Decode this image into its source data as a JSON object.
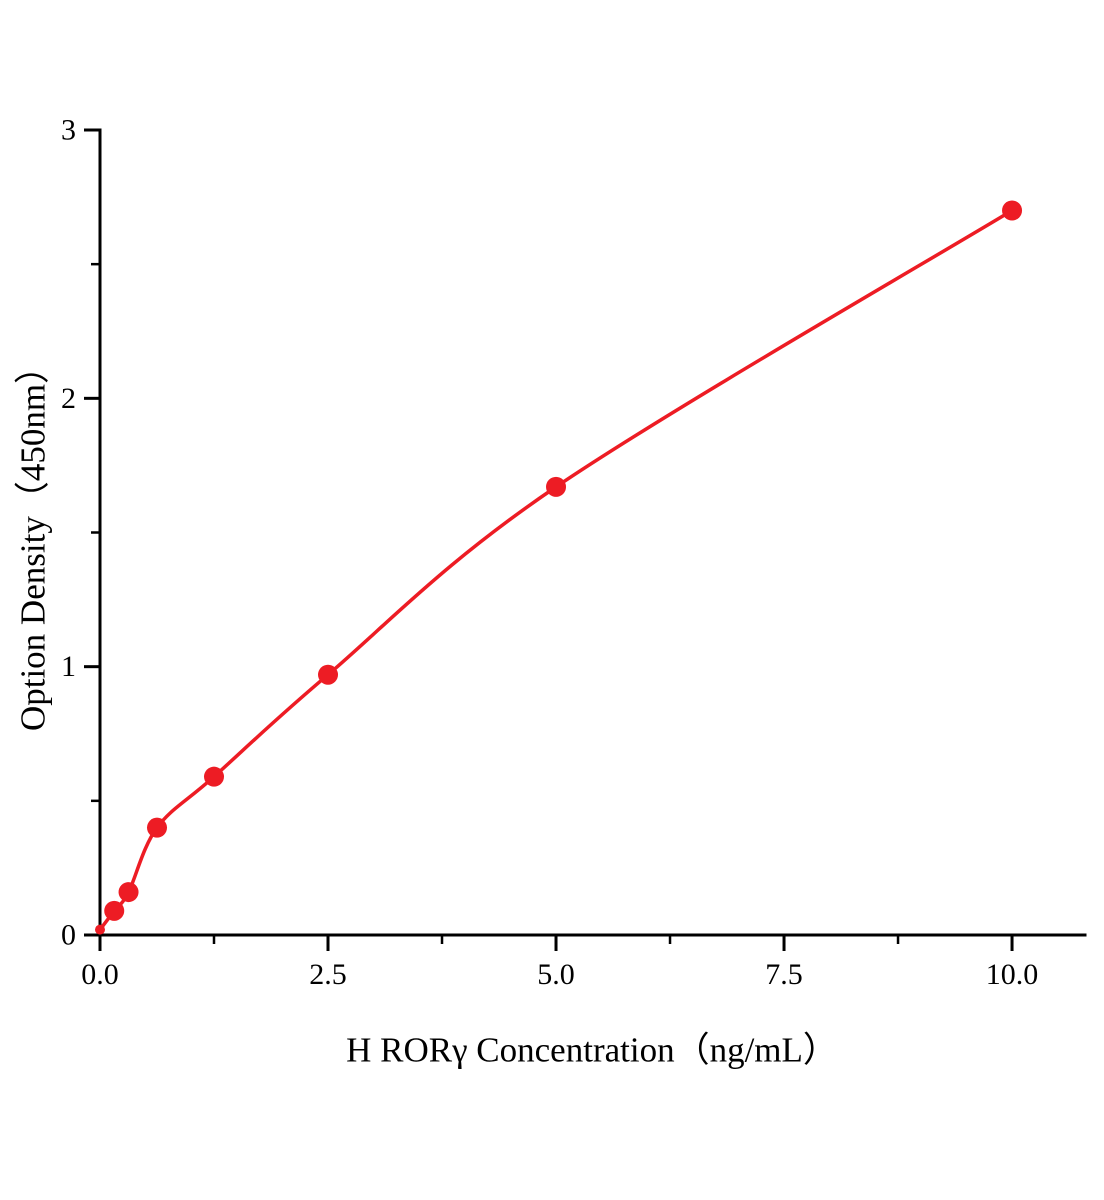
{
  "figure": {
    "background": "#ffffff"
  },
  "chart_data": {
    "type": "scatter",
    "title": "",
    "xlabel": "H RORγ Concentration（ng/mL）",
    "ylabel": "Option Density（450nm）",
    "x": [
      0,
      0.156,
      0.313,
      0.625,
      1.25,
      2.5,
      5,
      10
    ],
    "y": [
      0.02,
      0.09,
      0.16,
      0.4,
      0.59,
      0.97,
      1.67,
      2.7
    ],
    "curve": "smooth monotone curve through all points starting at origin",
    "x_ticks": [
      0,
      2.5,
      5,
      7.5,
      10
    ],
    "x_tick_labels": [
      "0.0",
      "2.5",
      "5.0",
      "7.5",
      "10.0"
    ],
    "y_ticks": [
      0,
      1,
      2,
      3
    ],
    "y_tick_labels": [
      "0",
      "1",
      "2",
      "3"
    ],
    "xlim": [
      0,
      10.8
    ],
    "ylim": [
      0,
      3
    ],
    "grid": false,
    "legend": false,
    "line_color": "#ed1c24",
    "marker_color": "#ed1c24",
    "marker_size": 10,
    "axis_color": "#000000"
  }
}
